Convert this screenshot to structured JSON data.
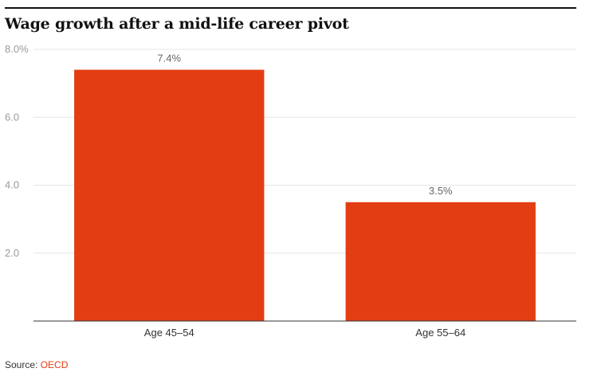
{
  "header": {
    "title": "Wage growth after a mid-life career pivot"
  },
  "footer": {
    "source_label": "Source:",
    "source_link": "OECD"
  },
  "colors": {
    "bar": "#e23d13",
    "grid": "#e6e6e6",
    "axis": "#333333"
  },
  "chart_data": {
    "type": "bar",
    "title": "Wage growth after a mid-life career pivot",
    "xlabel": "",
    "ylabel": "",
    "categories": [
      "Age 45–54",
      "Age 55–64"
    ],
    "values": [
      7.4,
      3.5
    ],
    "data_labels": [
      "7.4%",
      "3.5%"
    ],
    "ylim": [
      0,
      8
    ],
    "yticks": [
      2,
      4,
      6,
      8
    ],
    "ytick_labels": [
      "2.0",
      "4.0",
      "6.0",
      "8.0%"
    ],
    "grid": true,
    "legend": "none"
  }
}
